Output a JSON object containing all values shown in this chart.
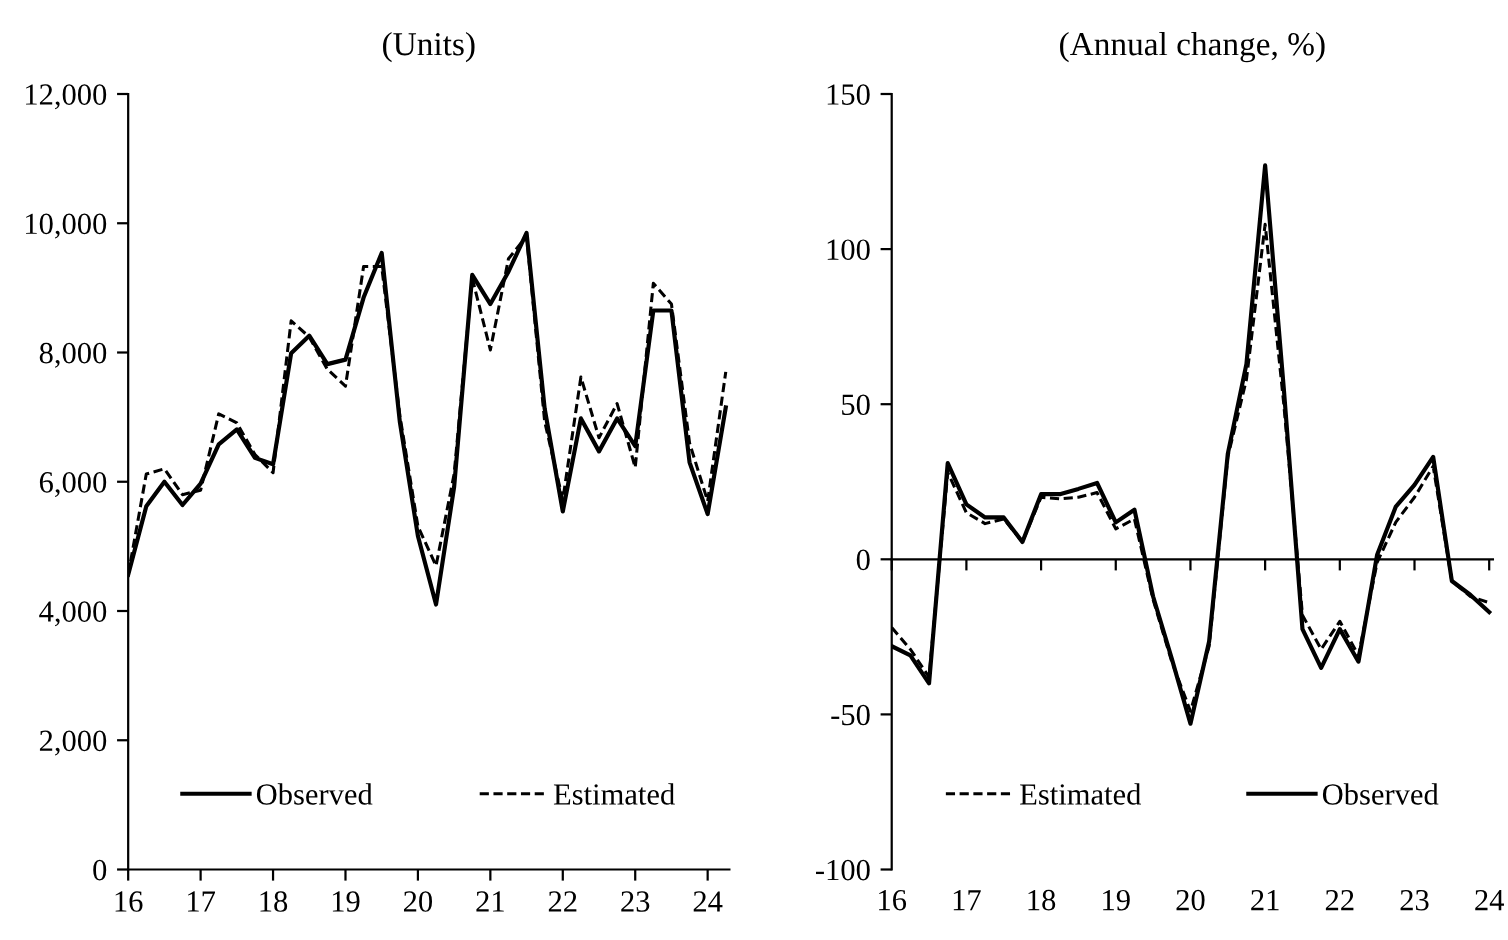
{
  "chart_data": [
    {
      "type": "line",
      "title": "(Units)",
      "x": [
        16.0,
        16.25,
        16.5,
        16.75,
        17.0,
        17.25,
        17.5,
        17.75,
        18.0,
        18.25,
        18.5,
        18.75,
        19.0,
        19.25,
        19.5,
        19.75,
        20.0,
        20.25,
        20.5,
        20.75,
        21.0,
        21.25,
        21.5,
        21.75,
        22.0,
        22.25,
        22.5,
        22.75,
        23.0,
        23.25,
        23.5,
        23.75,
        24.0,
        24.25
      ],
      "xlim": [
        16,
        24.3
      ],
      "xticks": [
        16,
        17,
        18,
        19,
        20,
        21,
        22,
        23,
        24
      ],
      "ylim": [
        0,
        12000
      ],
      "yticks": [
        {
          "value": 0,
          "label": "0"
        },
        {
          "value": 2000,
          "label": "2,000"
        },
        {
          "value": 4000,
          "label": "4,000"
        },
        {
          "value": 6000,
          "label": "6,000"
        },
        {
          "value": 8000,
          "label": "8,000"
        },
        {
          "value": 10000,
          "label": "10,000"
        },
        {
          "value": 12000,
          "label": "12,000"
        }
      ],
      "legend": "bottom",
      "series": [
        {
          "name": "Observed",
          "color": "#000000",
          "line_style": "solid",
          "values": [
            4560,
            5620,
            6000,
            5640,
            5970,
            6580,
            6810,
            6370,
            6270,
            7990,
            8260,
            7820,
            7890,
            8850,
            9540,
            6930,
            5160,
            4100,
            5920,
            9200,
            8750,
            9250,
            9850,
            7130,
            5540,
            6980,
            6470,
            6980,
            6550,
            8650,
            8650,
            6300,
            5500,
            7150
          ]
        },
        {
          "name": "Estimated",
          "color": "#000000",
          "line_style": "dashed",
          "values": [
            4560,
            6120,
            6200,
            5800,
            5870,
            7050,
            6910,
            6420,
            6140,
            8490,
            8240,
            7740,
            7480,
            9330,
            9330,
            7030,
            5310,
            4700,
            6120,
            9150,
            8040,
            9450,
            9800,
            6930,
            5720,
            7620,
            6680,
            7210,
            6220,
            9070,
            8750,
            6600,
            5700,
            7700
          ]
        }
      ]
    },
    {
      "type": "line",
      "title": "(Annual change, %)",
      "x": [
        16.0,
        16.25,
        16.5,
        16.75,
        17.0,
        17.25,
        17.5,
        17.75,
        18.0,
        18.25,
        18.5,
        18.75,
        19.0,
        19.25,
        19.5,
        19.75,
        20.0,
        20.25,
        20.5,
        20.75,
        21.0,
        21.25,
        21.5,
        21.75,
        22.0,
        22.25,
        22.5,
        22.75,
        23.0,
        23.25,
        23.5,
        23.75,
        24.0
      ],
      "xlim": [
        16,
        24.05
      ],
      "xticks": [
        16,
        17,
        18,
        19,
        20,
        21,
        22,
        23,
        24
      ],
      "ylim": [
        -100,
        150
      ],
      "yticks": [
        -100,
        -50,
        0,
        50,
        100,
        150
      ],
      "legend": "bottom",
      "series": [
        {
          "name": "Estimated",
          "color": "#000000",
          "line_style": "dashed",
          "values": [
            -22,
            -29,
            -38,
            28,
            15,
            11.5,
            13,
            5.6,
            20,
            19.5,
            20,
            21.5,
            9.8,
            13,
            -13,
            -33,
            -49,
            -28,
            33,
            58,
            108,
            50,
            -18,
            -29,
            -20,
            -31,
            -1,
            12,
            20,
            30,
            -7,
            -12,
            -14
          ]
        },
        {
          "name": "Observed",
          "color": "#000000",
          "line_style": "solid",
          "values": [
            -28,
            -31,
            -40,
            31,
            17.7,
            13.5,
            13.5,
            5.6,
            21,
            21,
            22.7,
            24.6,
            11.9,
            16,
            -12,
            -32,
            -53,
            -26.5,
            34,
            63,
            127,
            55,
            -22.5,
            -35,
            -22.5,
            -33,
            1.5,
            17,
            24,
            33,
            -7,
            -11.5,
            -17
          ]
        }
      ]
    }
  ]
}
